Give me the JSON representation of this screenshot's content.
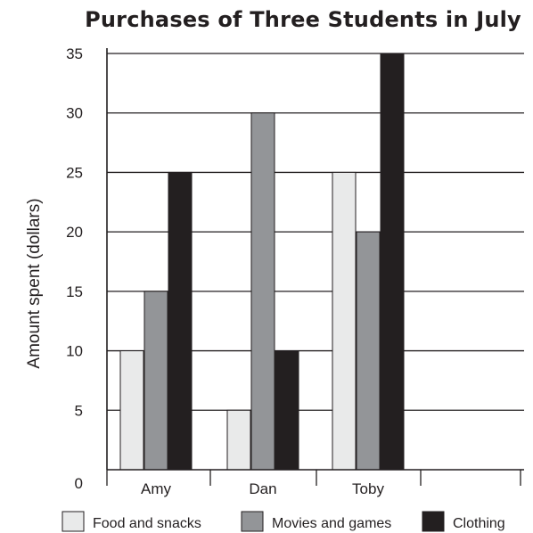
{
  "chart_data": {
    "type": "bar",
    "title": "Purchases of Three Students in July",
    "ylabel": "Amount spent (dollars)",
    "xlabel": "",
    "categories": [
      "Amy",
      "Dan",
      "Toby"
    ],
    "series": [
      {
        "name": "Food and snacks",
        "values": [
          10,
          5,
          25
        ],
        "color": "#e9eaea"
      },
      {
        "name": "Movies and games",
        "values": [
          15,
          30,
          20
        ],
        "color": "#939598"
      },
      {
        "name": "Clothing",
        "values": [
          25,
          10,
          35
        ],
        "color": "#231f20"
      }
    ],
    "ylim": [
      0,
      35
    ],
    "yticks": [
      0,
      5,
      10,
      15,
      20,
      25,
      30,
      35
    ],
    "grid": true,
    "legend_position": "bottom"
  }
}
